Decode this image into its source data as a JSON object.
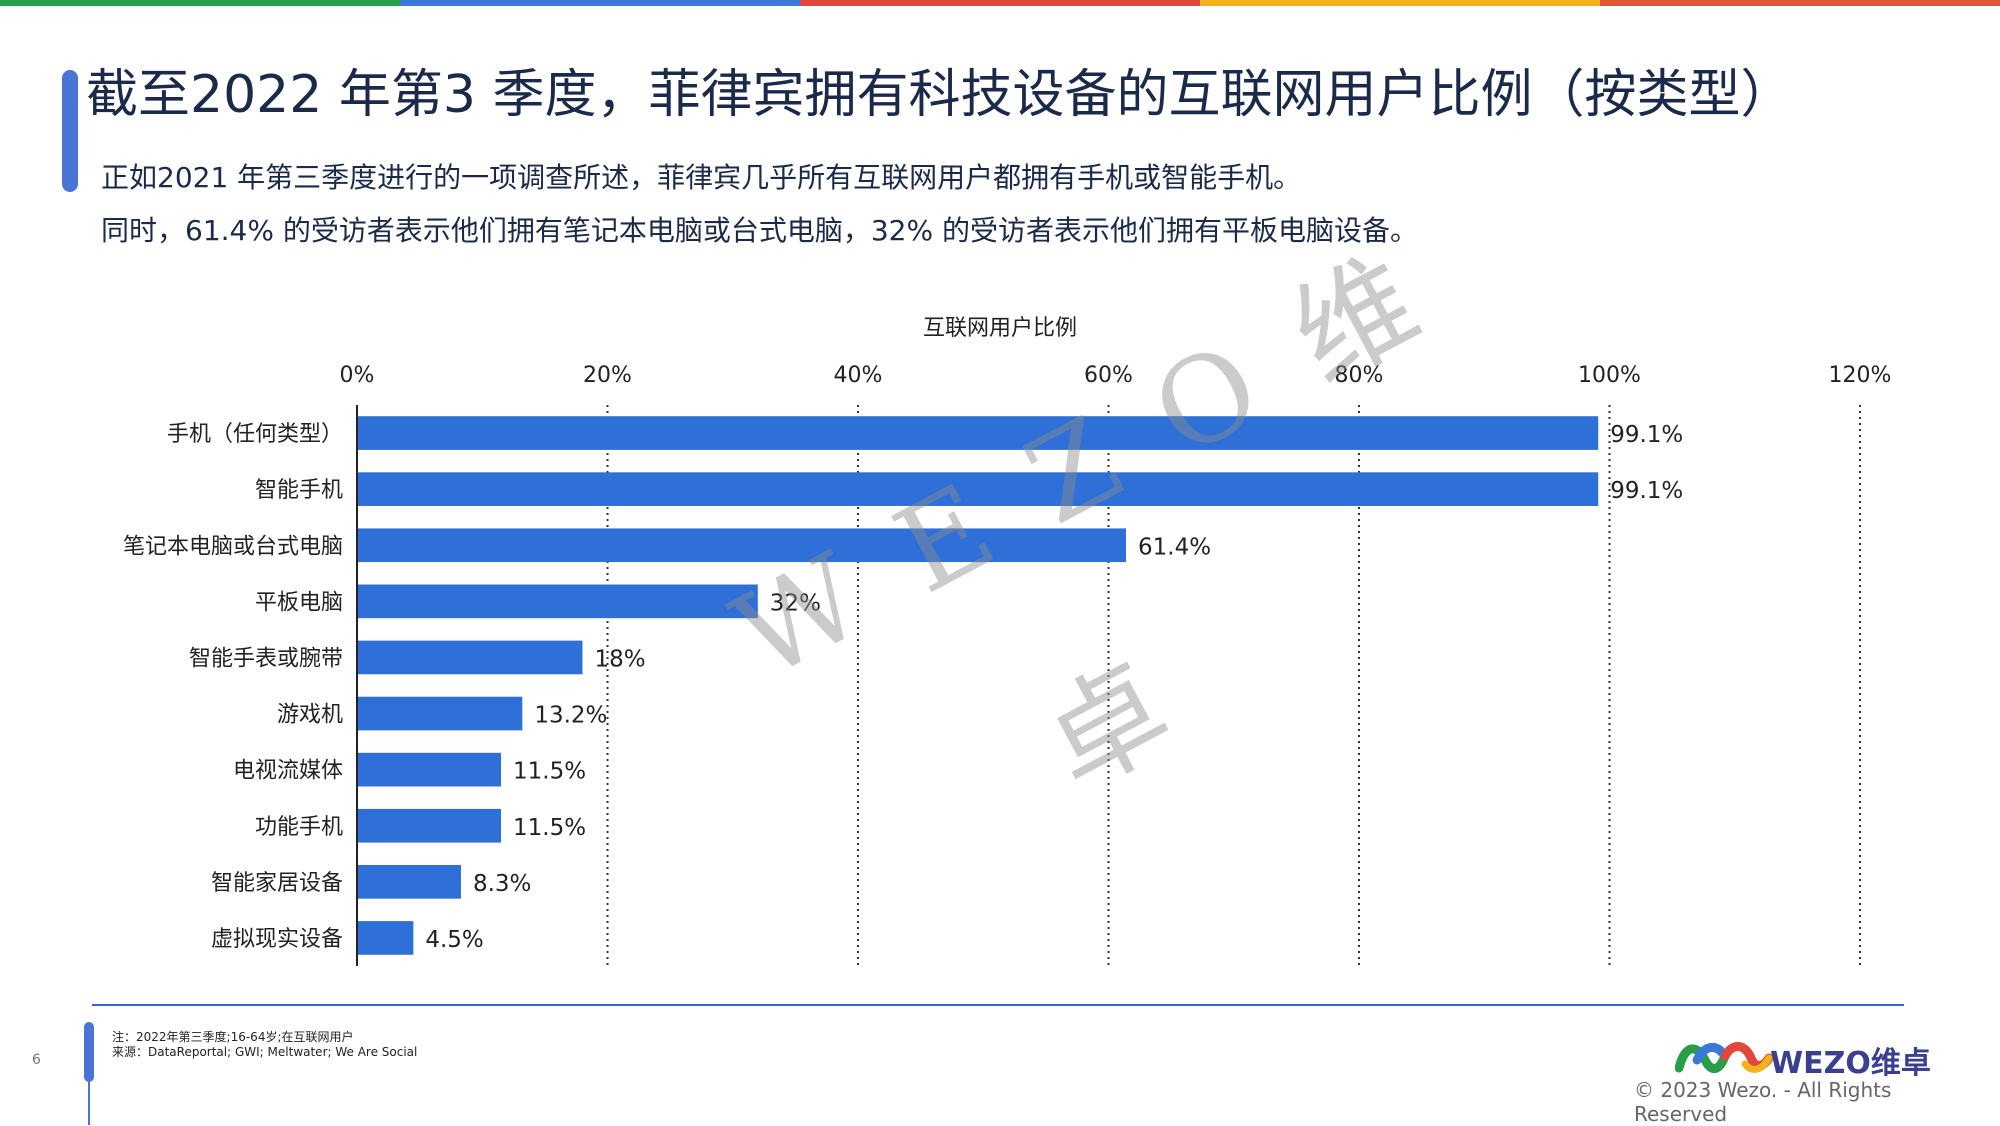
{
  "title": "截至2022 年第3 季度，菲律宾拥有科技设备的互联网用户比例（按类型）",
  "subtitle_line1": "正如2021 年第三季度进行的一项调查所述，菲律宾几乎所有互联网用户都拥有手机或智能手机。",
  "subtitle_line2": "同时，61.4% 的受访者表示他们拥有笔记本电脑或台式电脑，32% 的受访者表示他们拥有平板电脑设备。",
  "watermark": "W E Z O 维",
  "watermark_2": "卓",
  "footer": {
    "page_number": "6",
    "note": "注：2022年第三季度;16-64岁;在互联网用户",
    "source": "来源：DataReportal; GWI; Meltwater; We Are Social",
    "brand": "WEZO维卓",
    "copyright": "© 2023 Wezo. - All Rights Reserved"
  },
  "colors": {
    "bar": "#2e6fd8",
    "accent": "#4a74d6",
    "top_stripes": [
      "#2a9d4b",
      "#3b78d8",
      "#e0483a",
      "#f2b21e",
      "#e0573a"
    ]
  },
  "chart_data": {
    "type": "bar",
    "orientation": "horizontal",
    "xlabel": "互联网用户比例",
    "x_axis_position": "top",
    "xlim": [
      0,
      120
    ],
    "xticks": [
      "0%",
      "20%",
      "40%",
      "60%",
      "80%",
      "100%",
      "120%"
    ],
    "grid": "vertical dotted",
    "categories": [
      "手机（任何类型）",
      "智能手机",
      "笔记本电脑或台式电脑",
      "平板电脑",
      "智能手表或腕带",
      "游戏机",
      "电视流媒体",
      "功能手机",
      "智能家居设备",
      "虚拟现实设备"
    ],
    "values": [
      99.1,
      99.1,
      61.4,
      32,
      18,
      13.2,
      11.5,
      11.5,
      8.3,
      4.5
    ],
    "labels": [
      "99.1%",
      "99.1%",
      "61.4%",
      "32%",
      "18%",
      "13.2%",
      "11.5%",
      "11.5%",
      "8.3%",
      "4.5%"
    ]
  }
}
